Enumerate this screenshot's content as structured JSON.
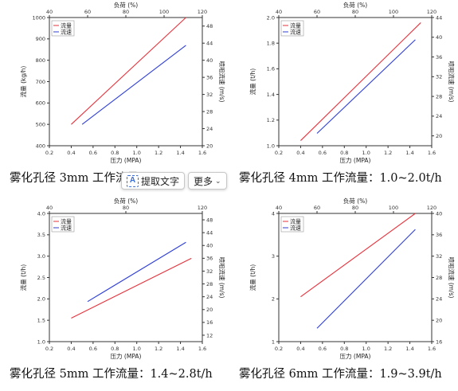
{
  "toolbar": {
    "extract_label": "提取文字",
    "more_label": "更多",
    "extract_icon": "text-extract-icon",
    "more_icon": "chevron-down-icon"
  },
  "chart_data": [
    {
      "type": "line",
      "top_axis_label": "负荷 (%)",
      "xlabel": "压力 (MPA)",
      "ylabel": "流量 (kg/h)",
      "y2label": "喷咀流速 (m/s)",
      "xlim": [
        0.2,
        1.6
      ],
      "ylim": [
        400,
        1000
      ],
      "y2lim": [
        20,
        50
      ],
      "toplim": [
        40,
        120
      ],
      "xticks": [
        "0.2",
        "0.4",
        "0.6",
        "0.8",
        "1.0",
        "1.2",
        "1.4",
        "1.6"
      ],
      "yticks": [
        "400",
        "500",
        "600",
        "700",
        "800",
        "900",
        "1000"
      ],
      "y2ticks": [
        "20",
        "24",
        "28",
        "32",
        "36",
        "40",
        "44",
        "48"
      ],
      "topticks": [
        "40",
        "60",
        "80",
        "100",
        "120"
      ],
      "legend": [
        "流量",
        "流速"
      ],
      "series": [
        {
          "name": "流量",
          "color": "#e8323c",
          "axis": "y",
          "x": [
            0.4,
            1.45
          ],
          "values": [
            500,
            1000
          ]
        },
        {
          "name": "流速",
          "color": "#2f3fd6",
          "axis": "y2",
          "x": [
            0.5,
            1.45
          ],
          "values": [
            25,
            43.5
          ]
        }
      ],
      "caption": "雾化孔径 3mm  工作流量："
    },
    {
      "type": "line",
      "top_axis_label": "负荷 (%)",
      "xlabel": "压力 (MPA)",
      "ylabel": "流量 (t/h)",
      "y2label": "喷咀流速 (m/s)",
      "xlim": [
        0.2,
        1.6
      ],
      "ylim": [
        1.0,
        2.0
      ],
      "y2lim": [
        18,
        44
      ],
      "toplim": [
        40,
        120
      ],
      "xticks": [
        "0.2",
        "0.4",
        "0.6",
        "0.8",
        "1.0",
        "1.2",
        "1.4",
        "1.6"
      ],
      "yticks": [
        "1.0",
        "1.2",
        "1.4",
        "1.6",
        "1.8",
        "2.0"
      ],
      "y2ticks": [
        "20",
        "24",
        "28",
        "32",
        "36",
        "40",
        "44"
      ],
      "topticks": [
        "40",
        "60",
        "80",
        "100",
        "120"
      ],
      "legend": [
        "流量",
        "流速"
      ],
      "series": [
        {
          "name": "流量",
          "color": "#e8323c",
          "axis": "y",
          "x": [
            0.4,
            1.5
          ],
          "values": [
            1.04,
            1.96
          ]
        },
        {
          "name": "流速",
          "color": "#2f3fd6",
          "axis": "y2",
          "x": [
            0.55,
            1.45
          ],
          "values": [
            20.5,
            39.5
          ]
        }
      ],
      "caption": "雾化孔径 4mm  工作流量：1.0~2.0t/h"
    },
    {
      "type": "line",
      "top_axis_label": "负荷 (%)",
      "xlabel": "压力 (MPA)",
      "ylabel": "流量 (t/h)",
      "y2label": "喷咀流速 (m/s)",
      "xlim": [
        0.2,
        1.6
      ],
      "ylim": [
        1.0,
        4.0
      ],
      "y2lim": [
        10,
        50
      ],
      "toplim": [
        40,
        120
      ],
      "xticks": [
        "0.2",
        "0.4",
        "0.6",
        "0.8",
        "1.0",
        "1.2",
        "1.4",
        "1.6"
      ],
      "yticks": [
        "1.0",
        "1.5",
        "2.0",
        "2.5",
        "3.0",
        "3.5",
        "4.0"
      ],
      "y2ticks": [
        "12",
        "16",
        "20",
        "24",
        "28",
        "32",
        "36",
        "40",
        "44",
        "48"
      ],
      "topticks": [
        "40",
        "80",
        "120"
      ],
      "legend": [
        "流量",
        "流速"
      ],
      "series": [
        {
          "name": "流量",
          "color": "#e8323c",
          "axis": "y",
          "x": [
            0.4,
            1.5
          ],
          "values": [
            1.55,
            2.95
          ]
        },
        {
          "name": "流速",
          "color": "#2f3fd6",
          "axis": "y2",
          "x": [
            0.55,
            1.45
          ],
          "values": [
            22.5,
            41
          ]
        }
      ],
      "caption": "雾化孔径 5mm  工作流量：1.4~2.8t/h"
    },
    {
      "type": "line",
      "top_axis_label": "负荷 (%)",
      "xlabel": "压力 (MPA)",
      "ylabel": "流量 (t/h)",
      "y2label": "喷咀流速 (m/s)",
      "xlim": [
        0.2,
        1.6
      ],
      "ylim": [
        1,
        4
      ],
      "y2lim": [
        16,
        40
      ],
      "toplim": [
        40,
        120
      ],
      "xticks": [
        "0.2",
        "0.4",
        "0.6",
        "0.8",
        "1.0",
        "1.2",
        "1.4",
        "1.6"
      ],
      "yticks": [
        "1",
        "2",
        "3",
        "4"
      ],
      "y2ticks": [
        "16",
        "20",
        "24",
        "28",
        "32",
        "36",
        "40"
      ],
      "topticks": [
        "40",
        "60",
        "80",
        "100",
        "120"
      ],
      "legend": [
        "流量",
        "流速"
      ],
      "series": [
        {
          "name": "流量",
          "color": "#e8323c",
          "axis": "y",
          "x": [
            0.4,
            1.45
          ],
          "values": [
            2.05,
            4.0
          ]
        },
        {
          "name": "流速",
          "color": "#2f3fd6",
          "axis": "y2",
          "x": [
            0.55,
            1.45
          ],
          "values": [
            18.5,
            37
          ]
        }
      ],
      "caption": "雾化孔径 6mm  工作流量：1.9~3.9t/h"
    }
  ]
}
